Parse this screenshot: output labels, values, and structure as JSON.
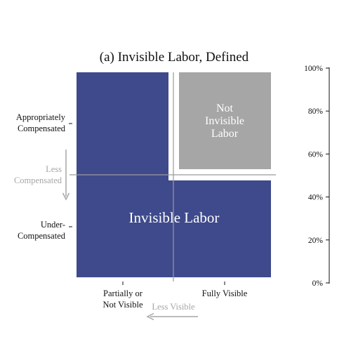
{
  "title": "(a) Invisible Labor, Defined",
  "y_axis_labels": {
    "top_line1": "Appropriately",
    "top_line2": "Compensated",
    "bottom_line1": "Under-",
    "bottom_line2": "Compensated"
  },
  "x_axis_labels": {
    "left_line1": "Partially or",
    "left_line2": "Not Visible",
    "right": "Fully Visible"
  },
  "arrows": {
    "vertical_line1": "Less",
    "vertical_line2": "Compensated",
    "horizontal": "Less Visible"
  },
  "regions": {
    "not_invisible_line1": "Not",
    "not_invisible_line2": "Invisible",
    "not_invisible_line3": "Labor",
    "invisible": "Invisible Labor"
  },
  "right_scale": {
    "ticks": [
      "100%",
      "80%",
      "60%",
      "40%",
      "20%",
      "0%"
    ]
  },
  "colors": {
    "invisible_fill": "#3f4a8c",
    "not_invisible_fill": "#a6a6a6",
    "divider": "#9a9a9a",
    "arrow": "#a6a6a6",
    "text": "#111111"
  }
}
